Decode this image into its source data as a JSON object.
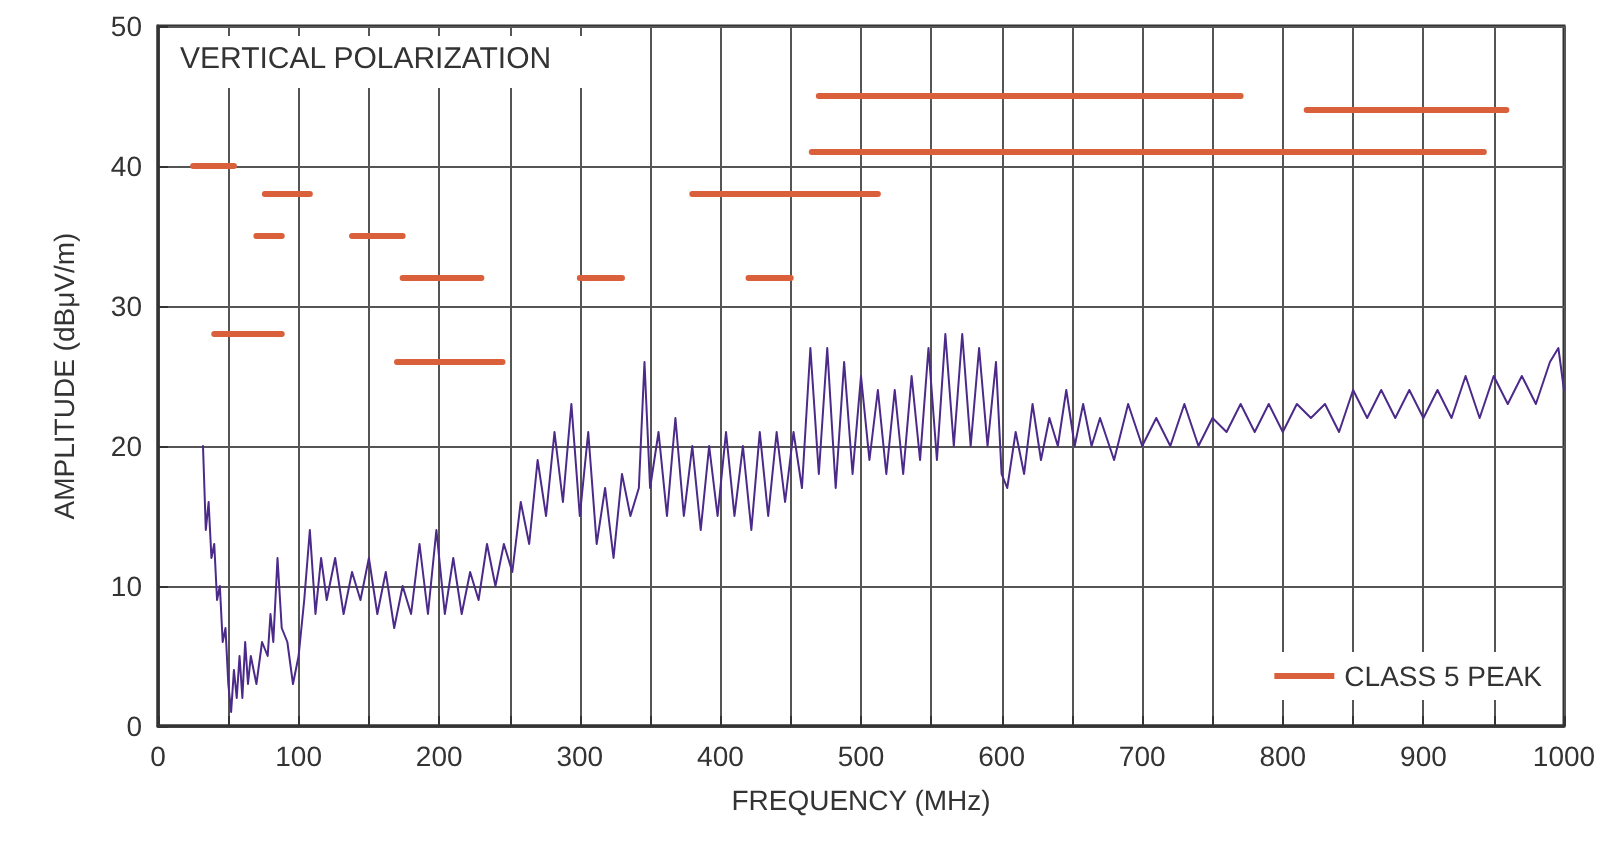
{
  "chart_data": {
    "type": "line",
    "xlabel": "FREQUENCY (MHz)",
    "ylabel": "AMPLITUDE (dBμV/m)",
    "annotations": [
      "VERTICAL POLARIZATION"
    ],
    "xlim": [
      0,
      1000
    ],
    "ylim": [
      0,
      50
    ],
    "xticks": [
      0,
      {
        "value": 50,
        "label": null
      },
      100,
      {
        "value": 150,
        "label": null
      },
      200,
      {
        "value": 250,
        "label": null
      },
      300,
      {
        "value": 350,
        "label": null
      },
      400,
      {
        "value": 450,
        "label": null
      },
      500,
      {
        "value": 550,
        "label": null
      },
      600,
      {
        "value": 650,
        "label": null
      },
      700,
      {
        "value": 750,
        "label": null
      },
      800,
      {
        "value": 850,
        "label": null
      },
      900,
      {
        "value": 950,
        "label": null
      },
      1000
    ],
    "yticks": [
      0,
      10,
      20,
      30,
      40,
      50
    ],
    "grid": true,
    "legend": "bottom right",
    "marker": "none",
    "line_style": "solid",
    "series": [
      {
        "color": "#4b2a8a",
        "x": [
          32,
          34,
          36,
          38,
          40,
          42,
          44,
          46,
          48,
          50,
          52,
          54,
          56,
          58,
          60,
          62,
          64,
          66,
          70,
          74,
          78,
          80,
          82,
          85,
          88,
          92,
          96,
          100,
          104,
          108,
          112,
          116,
          120,
          126,
          132,
          138,
          144,
          150,
          156,
          162,
          168,
          174,
          180,
          186,
          192,
          198,
          204,
          210,
          216,
          222,
          228,
          234,
          240,
          246,
          252,
          258,
          264,
          270,
          276,
          282,
          288,
          294,
          300,
          306,
          312,
          318,
          324,
          330,
          336,
          342,
          346,
          350,
          356,
          362,
          368,
          374,
          380,
          386,
          392,
          398,
          404,
          410,
          416,
          422,
          428,
          434,
          440,
          446,
          452,
          458,
          464,
          470,
          476,
          482,
          488,
          494,
          500,
          506,
          512,
          518,
          524,
          530,
          536,
          542,
          548,
          554,
          560,
          566,
          572,
          578,
          584,
          590,
          596,
          600,
          604,
          610,
          616,
          622,
          628,
          634,
          640,
          646,
          652,
          658,
          664,
          670,
          680,
          690,
          700,
          710,
          720,
          730,
          740,
          750,
          760,
          770,
          780,
          790,
          800,
          810,
          820,
          830,
          840,
          850,
          860,
          870,
          880,
          890,
          900,
          910,
          920,
          930,
          940,
          950,
          960,
          970,
          980,
          990,
          996,
          1000
        ],
        "values": [
          20,
          14,
          16,
          12,
          13,
          9,
          10,
          6,
          7,
          3,
          1,
          4,
          2,
          5,
          2,
          6,
          3,
          5,
          3,
          6,
          5,
          8,
          6,
          12,
          7,
          6,
          3,
          5,
          9,
          14,
          8,
          12,
          9,
          12,
          8,
          11,
          9,
          12,
          8,
          11,
          7,
          10,
          8,
          13,
          8,
          14,
          8,
          12,
          8,
          11,
          9,
          13,
          10,
          13,
          11,
          16,
          13,
          19,
          15,
          21,
          16,
          23,
          15,
          21,
          13,
          17,
          12,
          18,
          15,
          17,
          26,
          17,
          21,
          15,
          22,
          15,
          20,
          14,
          20,
          15,
          21,
          15,
          20,
          14,
          21,
          15,
          21,
          16,
          21,
          17,
          27,
          18,
          27,
          17,
          26,
          18,
          25,
          19,
          24,
          18,
          24,
          18,
          25,
          19,
          27,
          19,
          28,
          20,
          28,
          20,
          27,
          20,
          26,
          18,
          17,
          21,
          18,
          23,
          19,
          22,
          20,
          24,
          20,
          23,
          20,
          22,
          19,
          23,
          20,
          22,
          20,
          23,
          20,
          22,
          21,
          23,
          21,
          23,
          21,
          23,
          22,
          23,
          21,
          24,
          22,
          24,
          22,
          24,
          22,
          24,
          22,
          25,
          22,
          25,
          23,
          25,
          23,
          26,
          27,
          24
        ]
      },
      {
        "name": "CLASS 5 PEAK",
        "color": "#d9603b",
        "x": [
          25,
          54,
          null,
          76,
          108,
          null,
          70,
          88,
          null,
          138,
          174,
          null,
          174,
          230,
          null,
          300,
          330,
          null,
          420,
          450,
          null,
          40,
          88,
          null,
          170,
          245,
          null,
          380,
          512,
          null,
          470,
          770,
          null,
          465,
          943,
          null,
          817,
          959
        ],
        "values": [
          40,
          40,
          null,
          38,
          38,
          null,
          35,
          35,
          null,
          35,
          35,
          null,
          32,
          32,
          null,
          32,
          32,
          null,
          32,
          32,
          null,
          28,
          28,
          null,
          26,
          26,
          null,
          38,
          38,
          null,
          45,
          45,
          null,
          41,
          41,
          null,
          44,
          44
        ]
      }
    ]
  }
}
